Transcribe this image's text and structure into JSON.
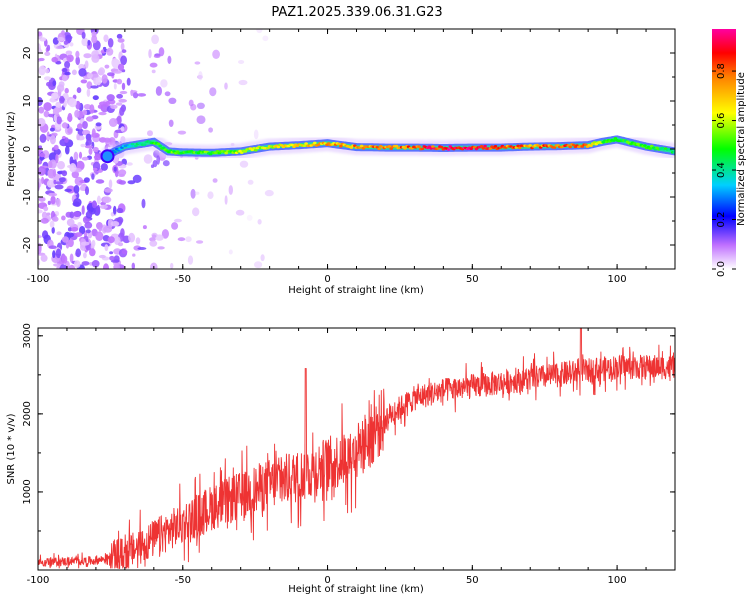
{
  "chart_data": [
    {
      "type": "heatmap",
      "title": "PAZ1.2025.339.06.31.G23",
      "xlabel": "Height of straight line (km)",
      "ylabel": "Frequency (Hz)",
      "xlim": [
        -100,
        120
      ],
      "ylim": [
        -25,
        25
      ],
      "xticks": [
        -100,
        -50,
        0,
        50,
        100
      ],
      "yticks": [
        -20,
        -10,
        0,
        10,
        20
      ],
      "colorbar": {
        "label": "Normalized spectral amplitude",
        "range": [
          0,
          0.97
        ],
        "ticks": [
          0.0,
          0.2,
          0.4,
          0.6,
          0.8
        ]
      },
      "signal_trace": {
        "x": [
          -77,
          -70,
          -60,
          -55,
          -50,
          -40,
          -30,
          -20,
          -10,
          0,
          10,
          20,
          30,
          40,
          50,
          60,
          70,
          80,
          90,
          95,
          100,
          110,
          120
        ],
        "freq": [
          -1.5,
          0.5,
          1.5,
          -0.5,
          -0.7,
          -0.8,
          -0.5,
          0.5,
          0.8,
          1.2,
          0.4,
          0.3,
          0.3,
          0.2,
          0.3,
          0.3,
          0.5,
          0.6,
          0.8,
          1.5,
          2.0,
          0.5,
          -0.5
        ],
        "amplitude": [
          0.25,
          0.35,
          0.5,
          0.55,
          0.5,
          0.55,
          0.6,
          0.65,
          0.7,
          0.75,
          0.8,
          0.82,
          0.85,
          0.95,
          0.95,
          0.85,
          0.8,
          0.85,
          0.8,
          0.55,
          0.5,
          0.55,
          0.45
        ]
      },
      "noise_region": {
        "xmin": -100,
        "xmax": -70,
        "note": "scattered low-amplitude noise"
      }
    },
    {
      "type": "line",
      "xlabel": "Height of straight line (km)",
      "ylabel": "SNR (10 * v/v)",
      "xlim": [
        -100,
        120
      ],
      "ylim": [
        0,
        3100
      ],
      "xticks": [
        -100,
        -50,
        0,
        50,
        100
      ],
      "yticks": [
        1000,
        2000,
        3000
      ],
      "color": "#ee3333",
      "trend": {
        "x": [
          -100,
          -80,
          -70,
          -60,
          -50,
          -40,
          -30,
          -20,
          -10,
          0,
          10,
          20,
          30,
          40,
          50,
          60,
          70,
          80,
          90,
          100,
          110,
          120
        ],
        "y": [
          100,
          120,
          200,
          400,
          600,
          800,
          950,
          1100,
          1200,
          1350,
          1500,
          1950,
          2200,
          2300,
          2350,
          2400,
          2450,
          2500,
          2550,
          2600,
          2600,
          2600
        ]
      },
      "spikes": [
        {
          "x": -7.5,
          "y": 2580
        },
        {
          "x": 87.5,
          "y": 3150
        }
      ]
    }
  ],
  "colors": {
    "axis": "#000000",
    "line": "#ee3333"
  }
}
